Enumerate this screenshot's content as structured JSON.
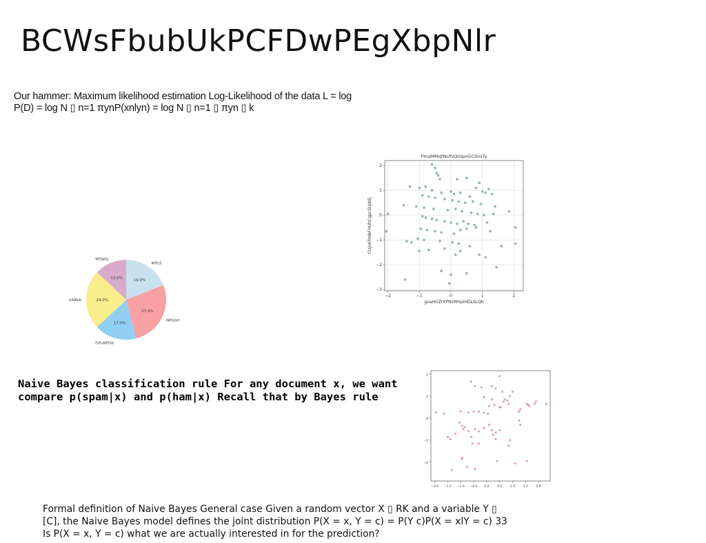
{
  "slide": {
    "title": "BCWsFbubUkPCFDwPEgXbpNlr",
    "text_block_1": "Our hammer: Maximum likelihood estimation Log-Likelihood of the data L = log P(D) = log N ▯ n=1 πynP(xnlyn) = log N ▯ n=1 ▯ πyn ▯ k",
    "text_block_2": "Naive Bayes classification rule For any document x, we want compare p(spam|x) and p(ham|x) Recall that by Bayes rule",
    "text_block_3": "Formal definition of Naive Bayes General case Given a random vector X ▯ RK and a variable Y ▯ [C], the Naive Bayes model defines the joint distribution P(X = x, Y = c) = P(Y c)P(X = xlY = c) 33 Is P(X = x, Y = c) what we are actually interested in for the prediction?"
  },
  "chart_data": [
    {
      "type": "pie",
      "slices": [
        {
          "label": "Wfiz5",
          "value": 19.0,
          "pct_label": "19.0%",
          "color": "#c9e1ee"
        },
        {
          "label": "NRSzkt",
          "value": 27.0,
          "pct_label": "27.0%",
          "color": "#f7a1a4"
        },
        {
          "label": "fsPuNPGb",
          "value": 17.0,
          "pct_label": "17.0%",
          "color": "#92d0f3"
        },
        {
          "label": "UABkb",
          "value": 24.0,
          "pct_label": "24.0%",
          "color": "#f9ee8c"
        },
        {
          "label": "WOqGj",
          "value": 13.0,
          "pct_label": "13.0%",
          "color": "#d9abca"
        }
      ],
      "start": "top",
      "direction": "clockwise"
    },
    {
      "type": "scatter",
      "title": "PmaMMqfNUfvQGipnGCSnsTy",
      "xlabel": "goaHOZrXPNVMVpIHDLSLQb",
      "ylabel": "CUjxKPmbFHUhCgpcSUjWij",
      "xlim": [
        -2.1,
        2.3
      ],
      "ylim": [
        -3.05,
        2.2
      ],
      "xticks": [
        -2,
        -1,
        0,
        1,
        2
      ],
      "yticks": [
        -3,
        -2,
        -1,
        0,
        1,
        2
      ],
      "xtick_labels": [
        "−2",
        "−1",
        "0",
        "1",
        "2"
      ],
      "ytick_labels": [
        "−3",
        "−2",
        "−1",
        "0",
        "1",
        "2"
      ],
      "grid": true,
      "color": "#7fa7a3",
      "x": [
        -0.6,
        -0.5,
        -0.45,
        -0.4,
        -0.35,
        0.2,
        0.5,
        0.9,
        1.2,
        -1.3,
        -1.0,
        -0.8,
        -0.6,
        -0.3,
        0.0,
        0.1,
        0.3,
        0.6,
        0.8,
        1.0,
        1.1,
        1.3,
        -0.9,
        -0.7,
        -0.5,
        -0.2,
        0.05,
        0.25,
        0.45,
        0.7,
        0.95,
        1.4,
        -1.5,
        -1.1,
        -0.85,
        -0.55,
        -0.1,
        0.15,
        0.35,
        0.65,
        0.85,
        1.05,
        1.35,
        1.85,
        -2.0,
        -0.9,
        -0.8,
        -0.6,
        -0.45,
        -0.2,
        0.0,
        0.2,
        0.4,
        0.55,
        0.75,
        1.15,
        2.05,
        -0.95,
        -0.75,
        -0.5,
        -0.3,
        0.1,
        0.3,
        0.5,
        0.8,
        1.25,
        -2.05,
        -1.05,
        -0.85,
        -0.35,
        0.05,
        0.25,
        0.6,
        1.6,
        2.05,
        -1.4,
        -1.25,
        -0.7,
        -0.2,
        0.3,
        0.9,
        1.1,
        -1.0,
        0.15,
        0.5,
        1.45,
        -1.45,
        -0.3,
        0.0,
        -0.05
      ],
      "y": [
        2.05,
        1.9,
        1.7,
        1.6,
        1.45,
        1.45,
        1.5,
        1.3,
        1.05,
        1.15,
        1.1,
        1.15,
        1.0,
        0.9,
        0.95,
        0.85,
        0.9,
        0.75,
        1.1,
        0.95,
        0.9,
        0.85,
        0.8,
        0.75,
        0.7,
        0.65,
        0.6,
        0.55,
        0.5,
        0.55,
        0.45,
        0.35,
        0.4,
        0.35,
        0.3,
        0.25,
        0.2,
        0.25,
        0.15,
        0.1,
        0.05,
        0.0,
        0.05,
        0.15,
        0.05,
        -0.05,
        -0.1,
        -0.15,
        -0.2,
        -0.25,
        -0.3,
        -0.35,
        -0.25,
        -0.35,
        -0.4,
        -0.3,
        -0.5,
        -0.55,
        -0.6,
        -0.65,
        -0.7,
        -0.75,
        -0.6,
        -0.55,
        -0.5,
        -0.65,
        -0.65,
        -0.95,
        -1.0,
        -1.05,
        -1.1,
        -1.15,
        -1.25,
        -1.25,
        -1.15,
        -1.05,
        -1.1,
        -1.4,
        -1.35,
        -1.45,
        -1.6,
        -1.7,
        -1.45,
        -1.6,
        -2.35,
        -2.1,
        -2.6,
        -2.25,
        -2.4,
        -2.75
      ]
    },
    {
      "type": "scatter",
      "title": "",
      "xlabel": "",
      "ylabel": "",
      "xlim": [
        -2.15,
        2.45
      ],
      "ylim": [
        -2.85,
        2.15
      ],
      "xticks": [
        -2.0,
        -1.5,
        -1.0,
        -0.5,
        0.0,
        0.5,
        1.0,
        1.5,
        2.0
      ],
      "yticks": [
        -2,
        -1,
        0,
        1,
        2
      ],
      "xtick_labels": [
        "−2.0",
        "−1.5",
        "−1.0",
        "−0.5",
        "0.0",
        "0.5",
        "1.0",
        "1.5",
        "2.0"
      ],
      "ytick_labels": [
        "−2",
        "−1",
        "0",
        "1",
        "2"
      ],
      "grid": false,
      "color": "#d08fae",
      "x": [
        0.5,
        -0.6,
        -0.2,
        0.2,
        0.35,
        -0.45,
        0.6,
        0.9,
        1.0,
        -0.1,
        0.2,
        0.7,
        0.8,
        1.6,
        1.9,
        2.3,
        1.65,
        -1.95,
        -1.65,
        -1.0,
        -0.7,
        -0.5,
        -0.3,
        -0.1,
        0.05,
        0.1,
        0.3,
        0.5,
        0.55,
        0.65,
        0.85,
        1.25,
        1.3,
        1.55,
        1.85,
        -1.5,
        -1.2,
        -0.9,
        -0.85,
        -0.7,
        -0.45,
        -0.3,
        -0.1,
        0.1,
        0.2,
        0.35,
        0.5,
        1.25,
        1.3,
        -1.4,
        -1.05,
        -0.95,
        -0.6,
        0.35,
        -0.3,
        0.25,
        0.85,
        0.9,
        -0.55,
        -0.95,
        1.55,
        -0.95,
        -0.75,
        0.4,
        1.1,
        -1.35,
        -0.45
      ],
      "y": [
        1.9,
        1.65,
        1.4,
        1.45,
        1.35,
        1.45,
        1.2,
        1.0,
        1.2,
        0.95,
        0.85,
        0.85,
        0.8,
        0.6,
        0.75,
        0.65,
        0.55,
        0.25,
        0.2,
        0.3,
        0.25,
        0.3,
        0.3,
        0.25,
        0.2,
        0.55,
        0.6,
        0.5,
        0.5,
        0.75,
        0.65,
        0.3,
        0.4,
        0.65,
        0.65,
        -0.85,
        -0.7,
        -0.5,
        -0.4,
        -0.6,
        -0.5,
        -0.6,
        -0.45,
        -0.3,
        -0.55,
        -0.65,
        -0.55,
        -0.1,
        -0.3,
        -0.95,
        -0.2,
        -0.35,
        -0.85,
        -0.95,
        -1.15,
        -0.75,
        -1.25,
        -1.0,
        -1.15,
        -1.8,
        -1.95,
        -1.85,
        -2.2,
        -1.95,
        -2.05,
        -2.35,
        -2.3
      ]
    }
  ]
}
